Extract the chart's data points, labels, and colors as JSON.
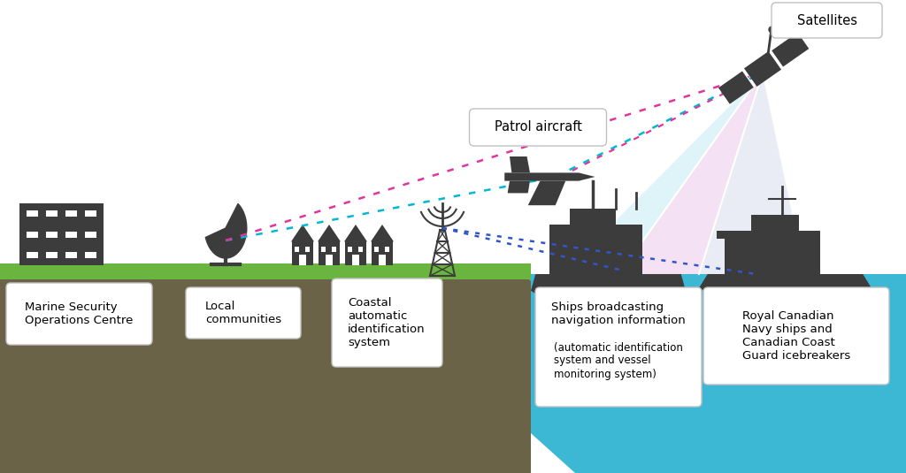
{
  "bg_color": "#ffffff",
  "ground_color": "#6b6348",
  "grass_color": "#6ab540",
  "water_color": "#3db8d4",
  "icon_color": "#3c3c3c",
  "line_cyan": "#00b8d4",
  "line_magenta": "#e0359a",
  "line_blue": "#3355cc",
  "beam_cyan_alpha": 0.45,
  "beam_pink_alpha": 0.45,
  "beam_gray_alpha": 0.4,
  "beam_cyan": "#b8e8f0",
  "beam_pink": "#e8c0e8",
  "beam_gray": "#c8d0e8",
  "label_patrol": "Patrol aircraft",
  "label_satellites": "Satellites",
  "label_marine": "Marine Security\nOperations Centre",
  "label_local": "Local\ncommunities",
  "label_coastal": "Coastal\nautomatic\nidentification\nsystem",
  "label_ships_main": "Ships broadcasting\nnavigation information",
  "label_ships_sub": "(automatic identification\nsystem and vessel\nmonitoring system)",
  "label_royal": "Royal Canadian\nNavy ships and\nCanadian Coast\nGuard icebreakers"
}
